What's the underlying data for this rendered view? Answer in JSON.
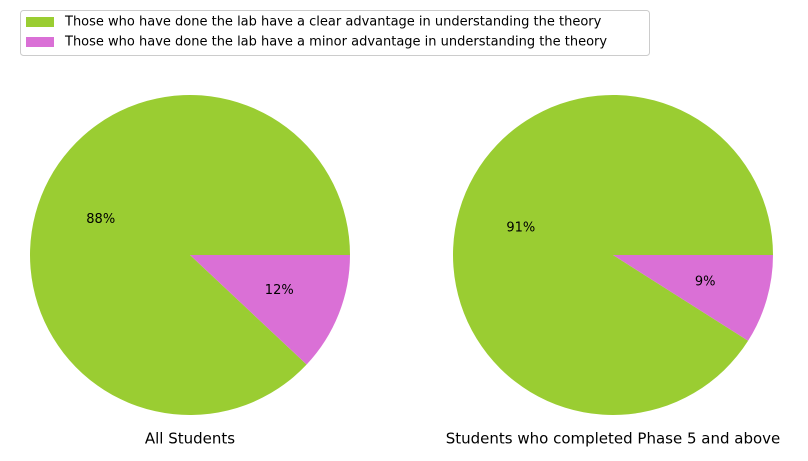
{
  "chart_data": [
    {
      "type": "pie",
      "title": "All Students",
      "categories": [
        "Those who have done the lab have a clear advantage in understanding the theory",
        "Those who have done the lab have a minor advantage in understanding the theory"
      ],
      "values": [
        88,
        12
      ],
      "value_labels": [
        "88%",
        "12%"
      ],
      "colors": [
        "#9acd32",
        "#da70d6"
      ]
    },
    {
      "type": "pie",
      "title": "Students who completed Phase 5 and above",
      "values": [
        91,
        9
      ],
      "value_labels": [
        "91%",
        "9%"
      ],
      "colors": [
        "#9acd32",
        "#da70d6"
      ]
    }
  ]
}
